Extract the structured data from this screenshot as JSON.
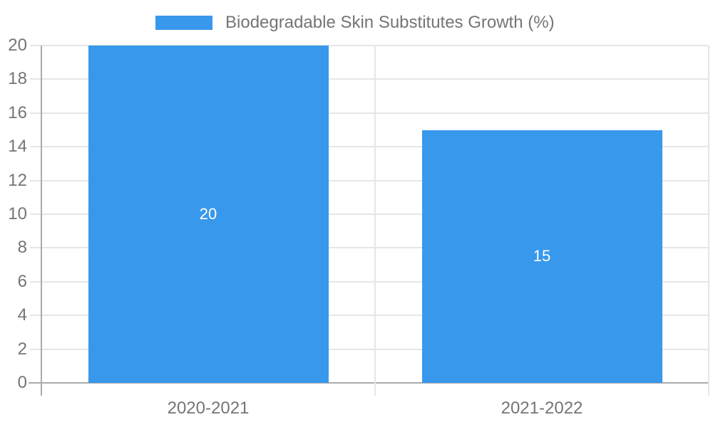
{
  "chart_data": {
    "type": "bar",
    "title": "",
    "legend": {
      "label": "Biodegradable Skin Substitutes Growth (%)",
      "position": "top-center"
    },
    "categories": [
      "2020-2021",
      "2021-2022"
    ],
    "series": [
      {
        "name": "Biodegradable Skin Substitutes Growth (%)",
        "values": [
          20,
          15
        ]
      }
    ],
    "value_labels": [
      "20",
      "15"
    ],
    "xlabel": "",
    "ylabel": "",
    "ylim": [
      0,
      20
    ],
    "ytick_step": 2,
    "yticks": [
      0,
      2,
      4,
      6,
      8,
      10,
      12,
      14,
      16,
      18,
      20
    ],
    "grid": "horizontal-and-category-boundaries",
    "colors": {
      "bar": "#3898ec",
      "grid": "#e6e6e6",
      "axis": "#ababab",
      "tick_text": "#757575",
      "value_label_text": "#ffffff",
      "background": "#ffffff"
    }
  }
}
